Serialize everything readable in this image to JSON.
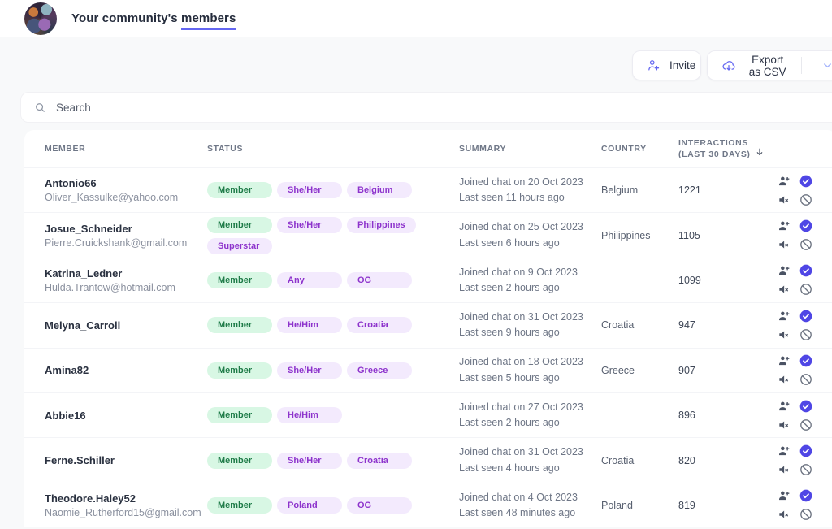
{
  "header": {
    "title": {
      "prefix": "Your community's ",
      "highlight": "members"
    }
  },
  "toolbar": {
    "invite": "Invite",
    "export": "Export as CSV"
  },
  "search": {
    "placeholder": "Search"
  },
  "table_headers": {
    "member": "MEMBER",
    "status": "STATUS",
    "summary": "SUMMARY",
    "country": "COUNTRY",
    "interactions_line1": "INTERACTIONS",
    "interactions_line2": "(LAST 30 DAYS)"
  },
  "colors": {
    "accent": "#6366f1",
    "verified_badge": "#4f46e5",
    "badge_green_bg": "#d8f7e4",
    "badge_green_text": "#1e7b48",
    "badge_purple_bg": "#f3eafd",
    "badge_purple_text": "#8d33cc"
  },
  "rows": [
    {
      "name": "Antonio66",
      "email": "Oliver_Kassulke@yahoo.com",
      "badges": [
        {
          "label": "Member",
          "type": "green"
        },
        {
          "label": "She/Her",
          "type": "purple"
        },
        {
          "label": "Belgium",
          "type": "purple"
        }
      ],
      "joined": "Joined chat on 20 Oct 2023",
      "last_seen": "Last seen 11 hours ago",
      "country": "Belgium",
      "interactions": "1221"
    },
    {
      "name": "Josue_Schneider",
      "email": "Pierre.Cruickshank@gmail.com",
      "badges": [
        {
          "label": "Member",
          "type": "green"
        },
        {
          "label": "She/Her",
          "type": "purple"
        },
        {
          "label": "Philippines",
          "type": "purple"
        },
        {
          "label": "Superstar",
          "type": "purple"
        }
      ],
      "joined": "Joined chat on 25 Oct 2023",
      "last_seen": "Last seen 6 hours ago",
      "country": "Philippines",
      "interactions": "1105"
    },
    {
      "name": "Katrina_Ledner",
      "email": "Hulda.Trantow@hotmail.com",
      "badges": [
        {
          "label": "Member",
          "type": "green"
        },
        {
          "label": "Any",
          "type": "purple"
        },
        {
          "label": "OG",
          "type": "purple"
        }
      ],
      "joined": "Joined chat on 9 Oct 2023",
      "last_seen": "Last seen 2 hours ago",
      "country": "",
      "interactions": "1099"
    },
    {
      "name": "Melyna_Carroll",
      "email": "",
      "badges": [
        {
          "label": "Member",
          "type": "green"
        },
        {
          "label": "He/Him",
          "type": "purple"
        },
        {
          "label": "Croatia",
          "type": "purple"
        }
      ],
      "joined": "Joined chat on 31 Oct 2023",
      "last_seen": "Last seen 9 hours ago",
      "country": "Croatia",
      "interactions": "947"
    },
    {
      "name": "Amina82",
      "email": "",
      "badges": [
        {
          "label": "Member",
          "type": "green"
        },
        {
          "label": "She/Her",
          "type": "purple"
        },
        {
          "label": "Greece",
          "type": "purple"
        }
      ],
      "joined": "Joined chat on 18 Oct 2023",
      "last_seen": "Last seen 5 hours ago",
      "country": "Greece",
      "interactions": "907"
    },
    {
      "name": "Abbie16",
      "email": "",
      "badges": [
        {
          "label": "Member",
          "type": "green"
        },
        {
          "label": "He/Him",
          "type": "purple"
        }
      ],
      "joined": "Joined chat on 27 Oct 2023",
      "last_seen": "Last seen 2 hours ago",
      "country": "",
      "interactions": "896"
    },
    {
      "name": "Ferne.Schiller",
      "email": "",
      "badges": [
        {
          "label": "Member",
          "type": "green"
        },
        {
          "label": "She/Her",
          "type": "purple"
        },
        {
          "label": "Croatia",
          "type": "purple"
        }
      ],
      "joined": "Joined chat on 31 Oct 2023",
      "last_seen": "Last seen 4 hours ago",
      "country": "Croatia",
      "interactions": "820"
    },
    {
      "name": "Theodore.Haley52",
      "email": "Naomie_Rutherford15@gmail.com",
      "badges": [
        {
          "label": "Member",
          "type": "green"
        },
        {
          "label": "Poland",
          "type": "purple"
        },
        {
          "label": "OG",
          "type": "purple"
        }
      ],
      "joined": "Joined chat on 4 Oct 2023",
      "last_seen": "Last seen 48 minutes ago",
      "country": "Poland",
      "interactions": "819"
    }
  ]
}
